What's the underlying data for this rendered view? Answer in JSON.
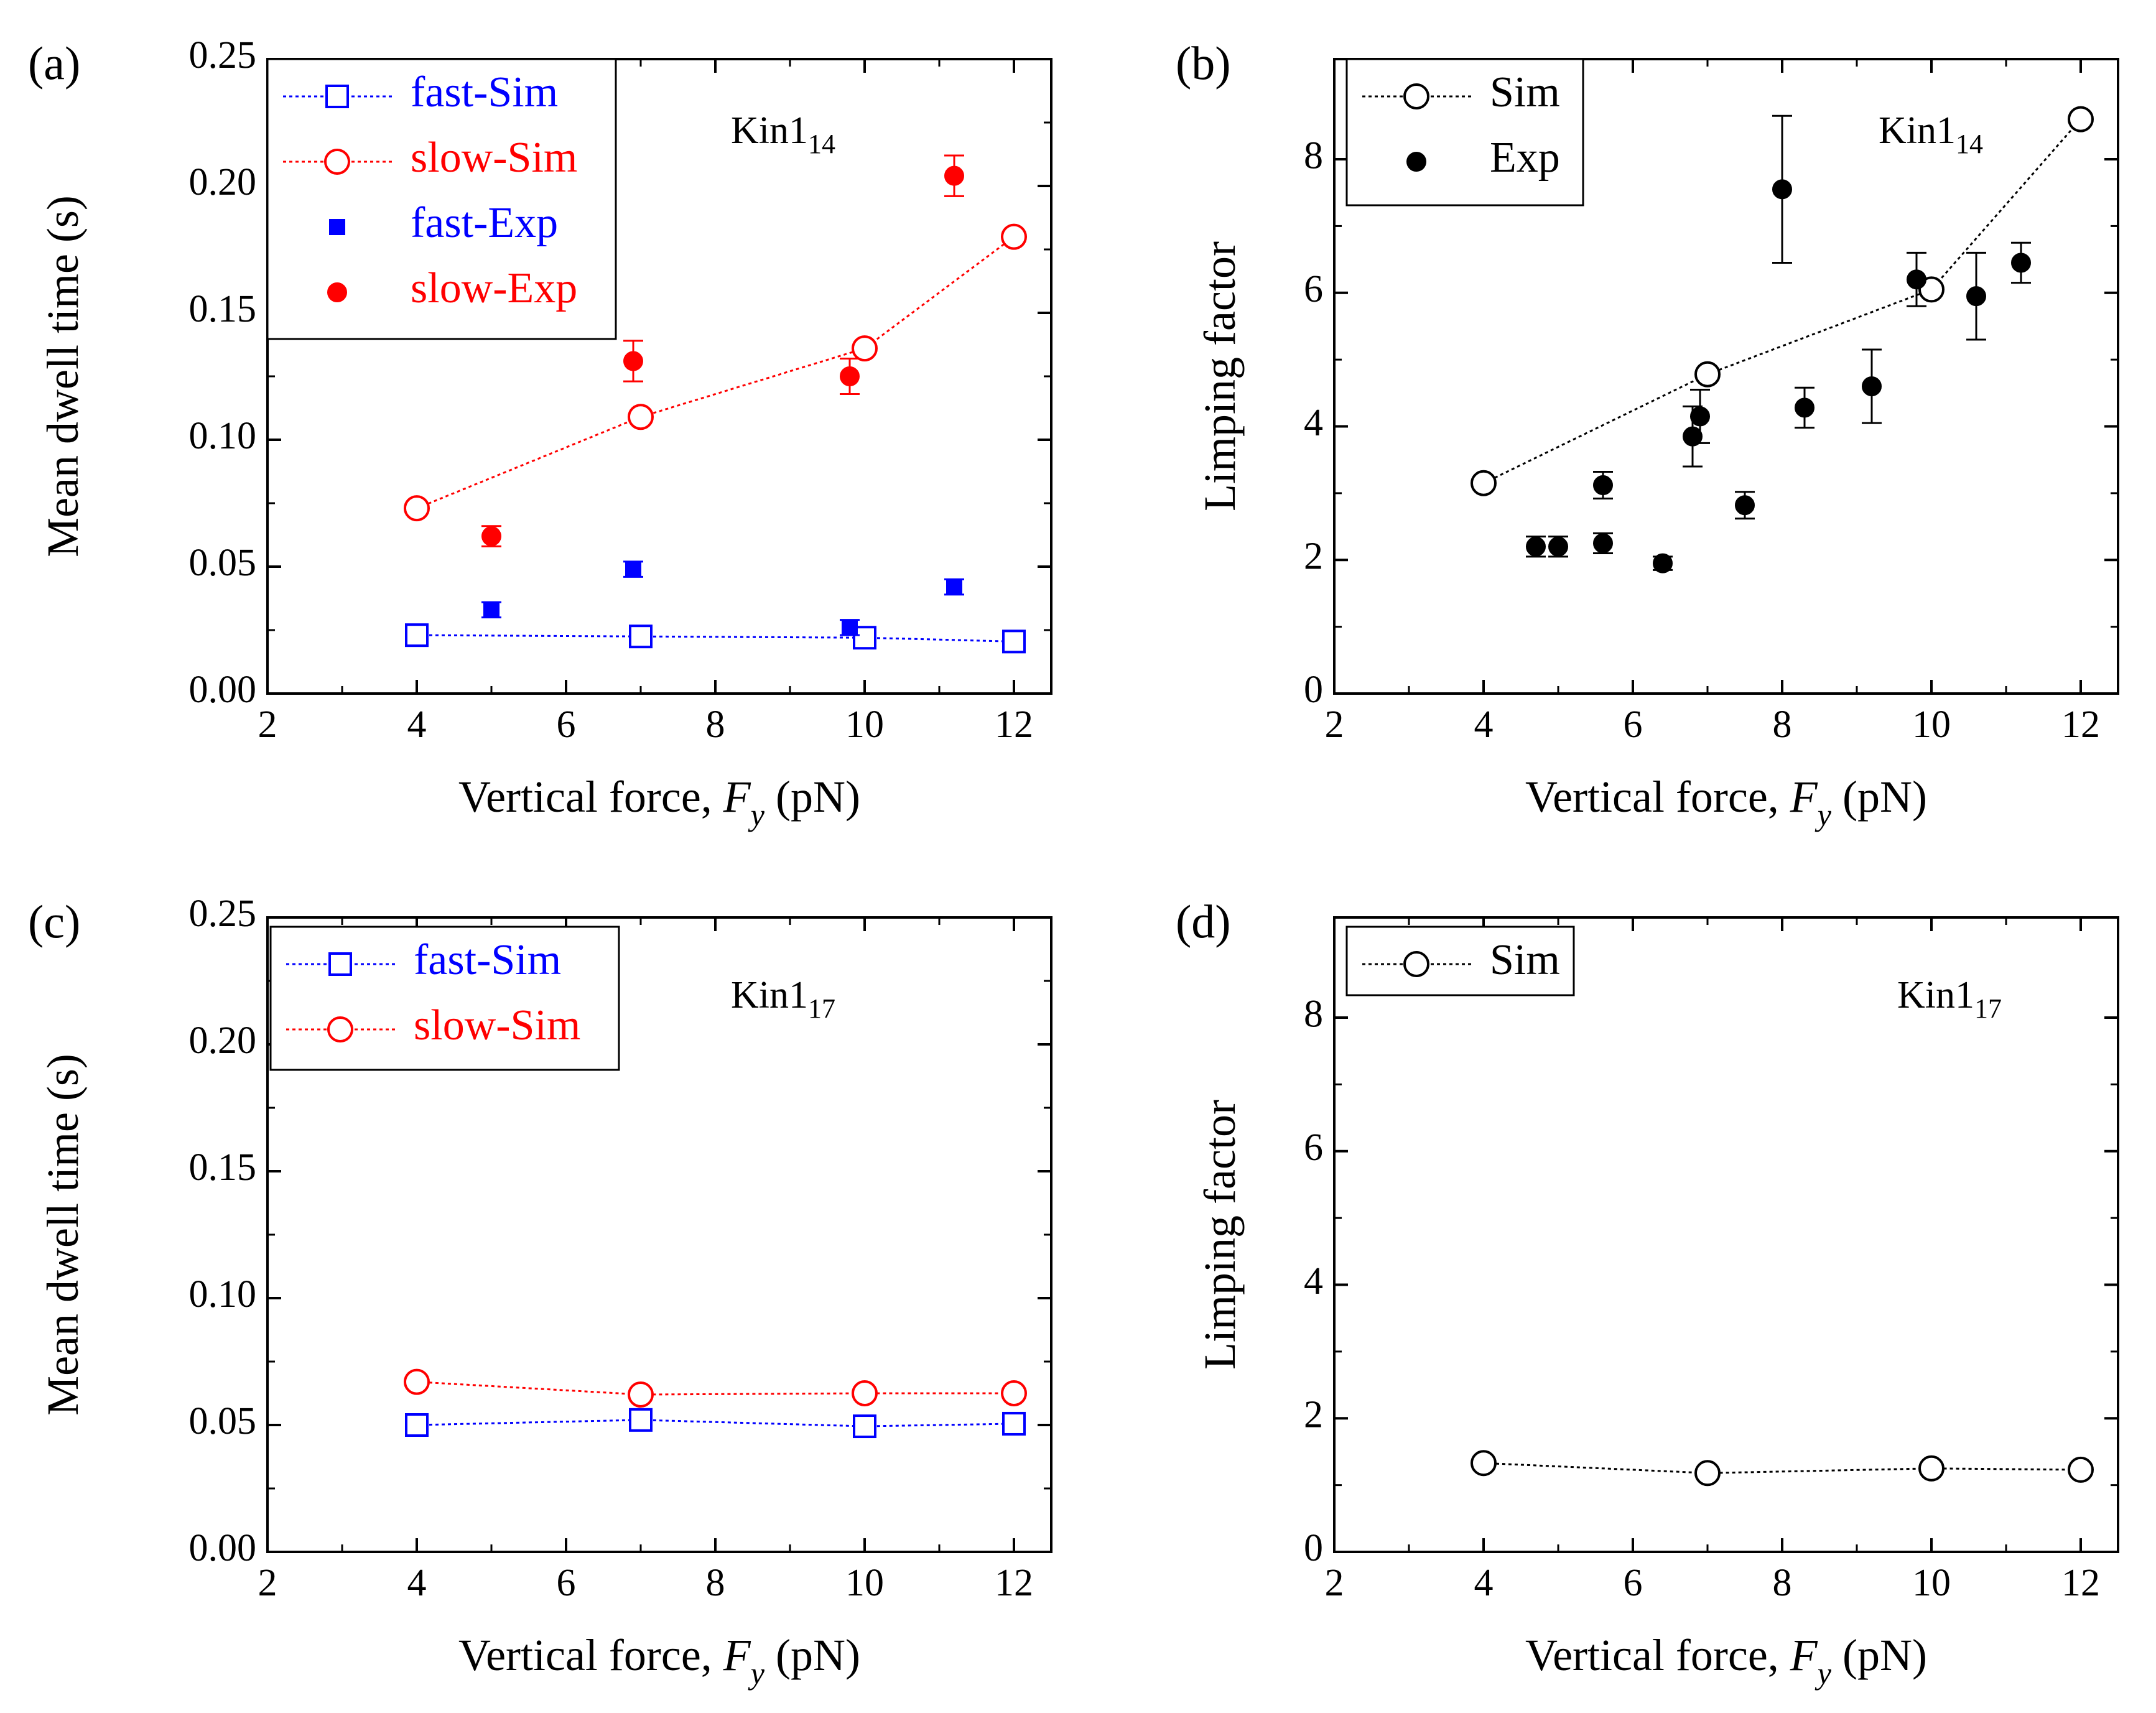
{
  "figure": {
    "background": "#ffffff"
  },
  "chart_data": [
    {
      "type": "scatter",
      "panel_label": "(a)",
      "annotation": {
        "base": "Kin1",
        "sub": "14"
      },
      "xlabel": {
        "pre": "Vertical force, ",
        "var": "F",
        "sub": "y",
        "post": " (pN)"
      },
      "ylabel": "Mean dwell time (s)",
      "xlim": [
        2,
        12.5
      ],
      "ylim": [
        0,
        0.25
      ],
      "xticks": [
        2,
        4,
        6,
        8,
        10,
        12
      ],
      "xtick_labels": [
        "2",
        "4",
        "6",
        "8",
        "10",
        "12"
      ],
      "yticks": [
        0,
        0.05,
        0.1,
        0.15,
        0.2,
        0.25
      ],
      "ytick_labels": [
        "0.00",
        "0.05",
        "0.10",
        "0.15",
        "0.20",
        "0.25"
      ],
      "legend": {
        "position": "top-left"
      },
      "series": [
        {
          "name": "fast-Sim",
          "color": "#0000ff",
          "marker": "square-open",
          "line": "dotted",
          "x": [
            4,
            7,
            10,
            12
          ],
          "y": [
            0.023,
            0.0225,
            0.022,
            0.0205
          ]
        },
        {
          "name": "slow-Sim",
          "color": "#ff0000",
          "marker": "circle-open",
          "line": "dotted",
          "x": [
            4,
            7,
            10,
            12
          ],
          "y": [
            0.073,
            0.109,
            0.136,
            0.18
          ]
        },
        {
          "name": "fast-Exp",
          "color": "#0000ff",
          "marker": "square-filled",
          "line": "none",
          "x": [
            5,
            6.9,
            9.8,
            11.2
          ],
          "y": [
            0.033,
            0.049,
            0.026,
            0.042
          ],
          "err": [
            0.003,
            0.003,
            0.003,
            0.003
          ]
        },
        {
          "name": "slow-Exp",
          "color": "#ff0000",
          "marker": "circle-filled",
          "line": "none",
          "x": [
            5,
            6.9,
            9.8,
            11.2
          ],
          "y": [
            0.062,
            0.131,
            0.125,
            0.204
          ],
          "err": [
            0.004,
            0.008,
            0.007,
            0.008
          ]
        }
      ]
    },
    {
      "type": "scatter",
      "panel_label": "(b)",
      "annotation": {
        "base": "Kin1",
        "sub": "14"
      },
      "xlabel": {
        "pre": "Vertical force, ",
        "var": "F",
        "sub": "y",
        "post": " (pN)"
      },
      "ylabel": "Limping factor",
      "xlim": [
        2,
        12.5
      ],
      "ylim": [
        0,
        9.5
      ],
      "xticks": [
        2,
        4,
        6,
        8,
        10,
        12
      ],
      "xtick_labels": [
        "2",
        "4",
        "6",
        "8",
        "10",
        "12"
      ],
      "yticks": [
        0,
        2,
        4,
        6,
        8
      ],
      "ytick_labels": [
        "0",
        "2",
        "4",
        "6",
        "8"
      ],
      "legend": {
        "position": "top-left"
      },
      "series": [
        {
          "name": "Sim",
          "color": "#000000",
          "marker": "circle-open",
          "line": "dotted",
          "x": [
            4,
            7,
            10,
            12
          ],
          "y": [
            3.15,
            4.78,
            6.05,
            8.6
          ]
        },
        {
          "name": "Exp",
          "color": "#000000",
          "marker": "circle-filled",
          "line": "none",
          "x": [
            4.7,
            5.0,
            5.6,
            5.6,
            6.4,
            6.8,
            6.9,
            7.5,
            8.0,
            8.3,
            9.2,
            9.8,
            10.6,
            11.2
          ],
          "y": [
            2.2,
            2.2,
            2.25,
            3.12,
            1.95,
            3.85,
            4.15,
            2.82,
            7.55,
            4.28,
            4.6,
            6.2,
            5.95,
            6.45
          ],
          "err": [
            0.15,
            0.15,
            0.15,
            0.2,
            0.1,
            0.45,
            0.4,
            0.2,
            1.1,
            0.3,
            0.55,
            0.4,
            0.65,
            0.3
          ]
        }
      ]
    },
    {
      "type": "line",
      "panel_label": "(c)",
      "annotation": {
        "base": "Kin1",
        "sub": "17"
      },
      "xlabel": {
        "pre": "Vertical force, ",
        "var": "F",
        "sub": "y",
        "post": " (pN)"
      },
      "ylabel": "Mean dwell time (s)",
      "xlim": [
        2,
        12.5
      ],
      "ylim": [
        0,
        0.25
      ],
      "xticks": [
        2,
        4,
        6,
        8,
        10,
        12
      ],
      "xtick_labels": [
        "2",
        "4",
        "6",
        "8",
        "10",
        "12"
      ],
      "yticks": [
        0,
        0.05,
        0.1,
        0.15,
        0.2,
        0.25
      ],
      "ytick_labels": [
        "0.00",
        "0.05",
        "0.10",
        "0.15",
        "0.20",
        "0.25"
      ],
      "legend": {
        "position": "top-left"
      },
      "series": [
        {
          "name": "fast-Sim",
          "color": "#0000ff",
          "marker": "square-open",
          "line": "dotted",
          "x": [
            4,
            7,
            10,
            12
          ],
          "y": [
            0.05,
            0.052,
            0.0495,
            0.0505
          ]
        },
        {
          "name": "slow-Sim",
          "color": "#ff0000",
          "marker": "circle-open",
          "line": "dotted",
          "x": [
            4,
            7,
            10,
            12
          ],
          "y": [
            0.067,
            0.062,
            0.0625,
            0.0625
          ]
        }
      ]
    },
    {
      "type": "line",
      "panel_label": "(d)",
      "annotation": {
        "base": "Kin1",
        "sub": "17"
      },
      "xlabel": {
        "pre": "Vertical force, ",
        "var": "F",
        "sub": "y",
        "post": " (pN)"
      },
      "ylabel": "Limping factor",
      "xlim": [
        2,
        12.5
      ],
      "ylim": [
        0,
        9.5
      ],
      "xticks": [
        2,
        4,
        6,
        8,
        10,
        12
      ],
      "xtick_labels": [
        "2",
        "4",
        "6",
        "8",
        "10",
        "12"
      ],
      "yticks": [
        0,
        2,
        4,
        6,
        8
      ],
      "ytick_labels": [
        "0",
        "2",
        "4",
        "6",
        "8"
      ],
      "legend": {
        "position": "top-left"
      },
      "series": [
        {
          "name": "Sim",
          "color": "#000000",
          "marker": "circle-open",
          "line": "dotted",
          "x": [
            4,
            7,
            10,
            12
          ],
          "y": [
            1.33,
            1.18,
            1.25,
            1.23
          ]
        }
      ]
    }
  ]
}
